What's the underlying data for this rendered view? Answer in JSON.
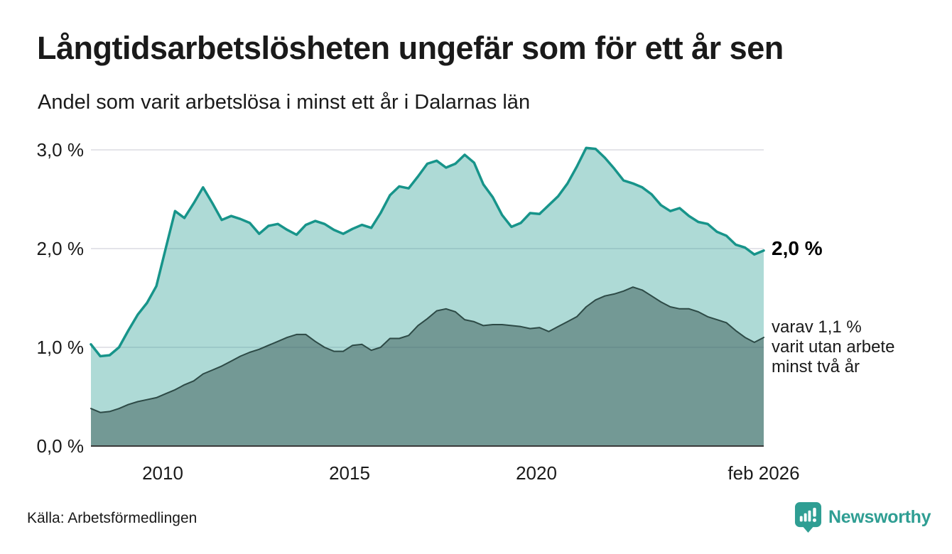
{
  "header": {
    "title": "Långtidsarbetslösheten ungefär som för ett år sen",
    "subtitle": "Andel som varit arbetslösa i minst ett år i Dalarnas län"
  },
  "annotations": {
    "end_total": "2,0 %",
    "end_sub_line1": "varav 1,1 %",
    "end_sub_line2": "varit utan arbete",
    "end_sub_line3": "minst två år"
  },
  "footer": {
    "source": "Källa: Arbetsförmedlingen",
    "brand": "Newsworthy"
  },
  "colors": {
    "grid": "#dcdce2",
    "axis": "#3a3a3a",
    "teal_line": "#17948a",
    "teal_fill": "rgba(23,148,138,0.35)",
    "dark_line": "#2d4a46",
    "dark_fill": "rgba(45,74,70,0.45)",
    "logo": "#2f9e93"
  },
  "chart_data": {
    "type": "area",
    "title": "Andel som varit arbetslösa i minst ett år i Dalarnas län",
    "x_unit": "decimal_year (quarterly, feb 2008 – feb 2026)",
    "ylabel": "procent",
    "ylim": [
      0,
      3.04
    ],
    "grid": "horizontal",
    "legend_position": "right-edge-labels",
    "x": [
      2008.08,
      2008.33,
      2008.58,
      2008.83,
      2009.08,
      2009.33,
      2009.58,
      2009.83,
      2010.08,
      2010.33,
      2010.58,
      2010.83,
      2011.08,
      2011.33,
      2011.58,
      2011.83,
      2012.08,
      2012.33,
      2012.58,
      2012.83,
      2013.08,
      2013.33,
      2013.58,
      2013.83,
      2014.08,
      2014.33,
      2014.58,
      2014.83,
      2015.08,
      2015.33,
      2015.58,
      2015.83,
      2016.08,
      2016.33,
      2016.58,
      2016.83,
      2017.08,
      2017.33,
      2017.58,
      2017.83,
      2018.08,
      2018.33,
      2018.58,
      2018.83,
      2019.08,
      2019.33,
      2019.58,
      2019.83,
      2020.08,
      2020.33,
      2020.58,
      2020.83,
      2021.08,
      2021.33,
      2021.58,
      2021.83,
      2022.08,
      2022.33,
      2022.58,
      2022.83,
      2023.08,
      2023.33,
      2023.58,
      2023.83,
      2024.08,
      2024.33,
      2024.58,
      2024.83,
      2025.08,
      2025.33,
      2025.58,
      2025.83,
      2026.08
    ],
    "series": [
      {
        "name": "Arbetslösa minst ett år (totalt)",
        "end_label": "2,0 %",
        "line_color": "#17948a",
        "fill_color": "rgba(23,148,138,0.35)",
        "line_width": 3.5,
        "values": [
          1.03,
          0.91,
          0.92,
          1.0,
          1.17,
          1.33,
          1.45,
          1.62,
          2.0,
          2.38,
          2.31,
          2.46,
          2.62,
          2.46,
          2.29,
          2.33,
          2.3,
          2.26,
          2.15,
          2.23,
          2.25,
          2.19,
          2.14,
          2.24,
          2.28,
          2.25,
          2.19,
          2.15,
          2.2,
          2.24,
          2.21,
          2.36,
          2.54,
          2.63,
          2.61,
          2.73,
          2.86,
          2.89,
          2.82,
          2.86,
          2.95,
          2.87,
          2.65,
          2.52,
          2.34,
          2.22,
          2.26,
          2.36,
          2.35,
          2.44,
          2.53,
          2.66,
          2.83,
          3.02,
          3.01,
          2.92,
          2.81,
          2.69,
          2.66,
          2.62,
          2.55,
          2.44,
          2.38,
          2.41,
          2.33,
          2.27,
          2.25,
          2.17,
          2.13,
          2.04,
          2.01,
          1.94,
          1.98
        ]
      },
      {
        "name": "varav utan arbete minst två år",
        "end_label": "varav 1,1 % varit utan arbete minst två år",
        "line_color": "#2d4a46",
        "fill_color": "rgba(45,74,70,0.45)",
        "line_width": 2,
        "values": [
          0.38,
          0.34,
          0.35,
          0.38,
          0.42,
          0.45,
          0.47,
          0.49,
          0.53,
          0.57,
          0.62,
          0.66,
          0.73,
          0.77,
          0.81,
          0.86,
          0.91,
          0.95,
          0.98,
          1.02,
          1.06,
          1.1,
          1.13,
          1.13,
          1.06,
          1.0,
          0.96,
          0.96,
          1.02,
          1.03,
          0.97,
          1.0,
          1.09,
          1.09,
          1.12,
          1.22,
          1.29,
          1.37,
          1.39,
          1.36,
          1.28,
          1.26,
          1.22,
          1.23,
          1.23,
          1.22,
          1.21,
          1.19,
          1.2,
          1.16,
          1.21,
          1.26,
          1.31,
          1.41,
          1.48,
          1.52,
          1.54,
          1.57,
          1.61,
          1.58,
          1.52,
          1.46,
          1.41,
          1.39,
          1.39,
          1.36,
          1.31,
          1.28,
          1.25,
          1.17,
          1.1,
          1.05,
          1.1
        ]
      }
    ],
    "y_ticks": [
      {
        "value": 3,
        "label": "3,0 %"
      },
      {
        "value": 2,
        "label": "2,0 %"
      },
      {
        "value": 1,
        "label": "1,0 %"
      },
      {
        "value": 0,
        "label": "0,0 %"
      }
    ],
    "x_ticks": [
      {
        "value": 2010,
        "label": "2010"
      },
      {
        "value": 2015,
        "label": "2015"
      },
      {
        "value": 2020,
        "label": "2020"
      },
      {
        "value": 2026.08,
        "label": "feb 2026"
      }
    ]
  }
}
